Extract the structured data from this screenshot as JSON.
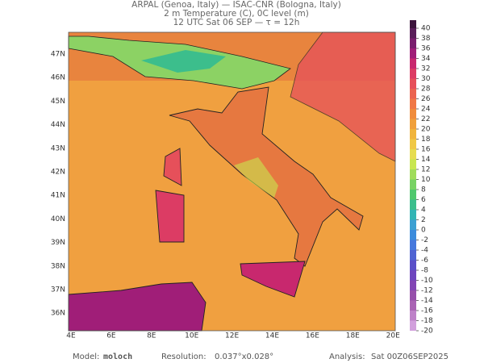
{
  "header": {
    "line1": "ARPAL (Genoa, Italy)  —  ISAC-CNR (Bologna, Italy)",
    "line2": "2 m Temperature (C), 0C level (m)",
    "line3": "12 UTC Sat 06 SEP  —  τ = 12h"
  },
  "map": {
    "lat_labels": [
      "47N",
      "46N",
      "45N",
      "44N",
      "43N",
      "42N",
      "41N",
      "40N",
      "39N",
      "38N",
      "37N",
      "36N"
    ],
    "lon_labels": [
      "4E",
      "6E",
      "8E",
      "10E",
      "12E",
      "14E",
      "16E",
      "18E",
      "20E"
    ]
  },
  "colorbar": {
    "ticks": [
      40,
      38,
      36,
      34,
      32,
      30,
      28,
      26,
      24,
      22,
      20,
      18,
      16,
      14,
      12,
      10,
      8,
      6,
      4,
      2,
      0,
      -2,
      -4,
      -6,
      -8,
      -10,
      -12,
      -14,
      -16,
      -18,
      -20
    ],
    "colors": [
      "#5a1e5a",
      "#7a1e6e",
      "#a01e78",
      "#c8286e",
      "#dc3c64",
      "#e6505a",
      "#eb6450",
      "#f07846",
      "#f08c3c",
      "#f0a03c",
      "#f0b43c",
      "#f0c846",
      "#e6dc50",
      "#c8e650",
      "#a0dc5a",
      "#78d264",
      "#50c86e",
      "#3cbe8c",
      "#32b4b4",
      "#3ca0d2",
      "#3c8cdc",
      "#4678dc",
      "#5064d2",
      "#5a50c8",
      "#6e46be",
      "#8246b4",
      "#9650aa",
      "#aa64b4",
      "#be82c8",
      "#d2a0dc"
    ]
  },
  "footer": {
    "model_label": "Model:",
    "model": "moloch",
    "resolution_label": "Resolution:",
    "resolution": "0.037°x0.028°",
    "analysis_label": "Analysis:",
    "analysis": "Sat 00Z06SEP2025"
  }
}
